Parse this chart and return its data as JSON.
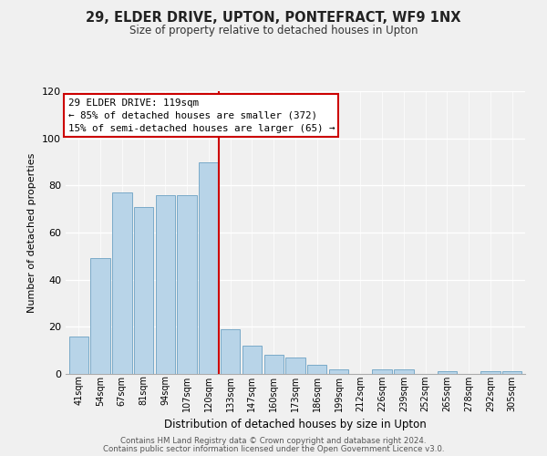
{
  "title": "29, ELDER DRIVE, UPTON, PONTEFRACT, WF9 1NX",
  "subtitle": "Size of property relative to detached houses in Upton",
  "xlabel": "Distribution of detached houses by size in Upton",
  "ylabel": "Number of detached properties",
  "footer_lines": [
    "Contains HM Land Registry data © Crown copyright and database right 2024.",
    "Contains public sector information licensed under the Open Government Licence v3.0."
  ],
  "bar_labels": [
    "41sqm",
    "54sqm",
    "67sqm",
    "81sqm",
    "94sqm",
    "107sqm",
    "120sqm",
    "133sqm",
    "147sqm",
    "160sqm",
    "173sqm",
    "186sqm",
    "199sqm",
    "212sqm",
    "226sqm",
    "239sqm",
    "252sqm",
    "265sqm",
    "278sqm",
    "292sqm",
    "305sqm"
  ],
  "bar_values": [
    16,
    49,
    77,
    71,
    76,
    76,
    90,
    19,
    12,
    8,
    7,
    4,
    2,
    0,
    2,
    2,
    0,
    1,
    0,
    1,
    1
  ],
  "bar_color": "#b8d4e8",
  "bar_edge_color": "#7aaac8",
  "highlight_index": 6,
  "highlight_line_color": "#cc0000",
  "ylim": [
    0,
    120
  ],
  "yticks": [
    0,
    20,
    40,
    60,
    80,
    100,
    120
  ],
  "annotation_text": "29 ELDER DRIVE: 119sqm\n← 85% of detached houses are smaller (372)\n15% of semi-detached houses are larger (65) →",
  "annotation_box_edge": "#cc0000",
  "background_color": "#f0f0f0",
  "plot_bg_color": "#f0f0f0",
  "grid_color": "#ffffff"
}
